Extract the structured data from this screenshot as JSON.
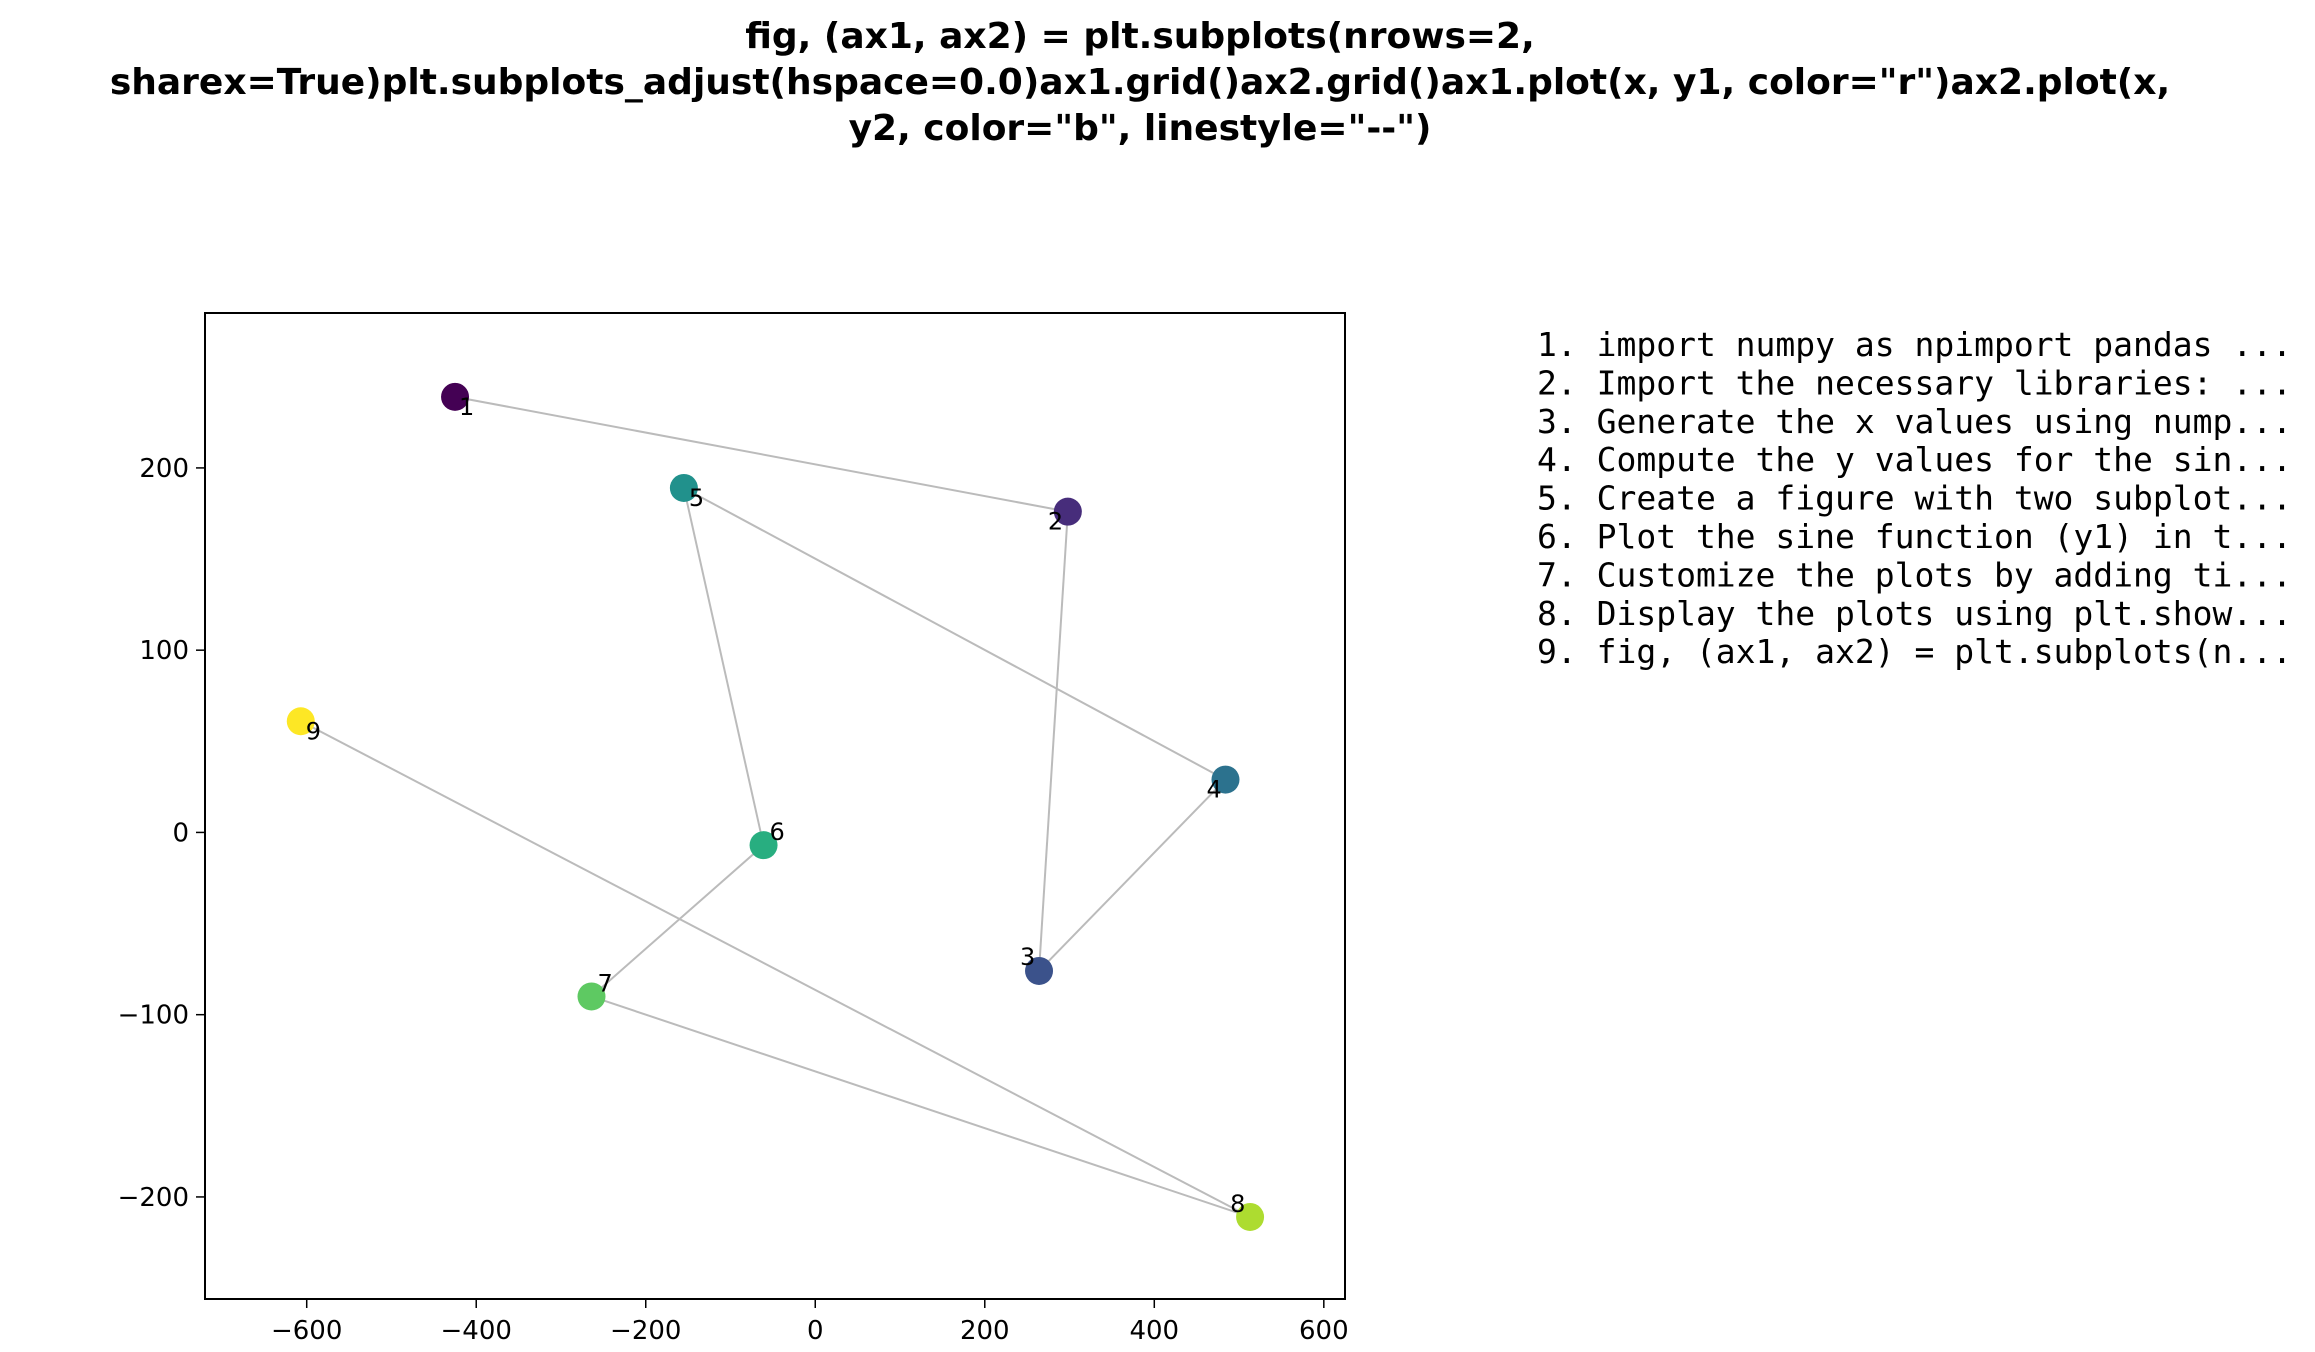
{
  "title": {
    "lines": [
      "fig, (ax1, ax2) = plt.subplots(nrows=2,",
      "sharex=True)plt.subplots_adjust(hspace=0.0)ax1.grid()ax2.grid()ax1.plot(x, y1, color=\"r\")ax2.plot(x,",
      "y2, color=\"b\", linestyle=\"--\")"
    ]
  },
  "chart_data": {
    "type": "scatter",
    "connected": true,
    "line_color": "#bbbbbb",
    "colormap": "viridis",
    "xlim": [
      -720,
      625
    ],
    "ylim": [
      -256,
      285
    ],
    "xticks": [
      -600,
      -400,
      -200,
      0,
      200,
      400,
      600
    ],
    "xtick_labels": [
      "−600",
      "−400",
      "−200",
      "0",
      "200",
      "400",
      "600"
    ],
    "yticks": [
      -200,
      -100,
      0,
      100,
      200
    ],
    "ytick_labels": [
      "−200",
      "−100",
      "0",
      "100",
      "200"
    ],
    "grid": false,
    "points": [
      {
        "label": "1",
        "x": -425,
        "y": 239,
        "color": "#440154"
      },
      {
        "label": "2",
        "x": 298,
        "y": 176,
        "color": "#472d7b"
      },
      {
        "label": "3",
        "x": 264,
        "y": -76,
        "color": "#3b528b"
      },
      {
        "label": "4",
        "x": 484,
        "y": 29,
        "color": "#2c728e"
      },
      {
        "label": "5",
        "x": -155,
        "y": 189,
        "color": "#21918c"
      },
      {
        "label": "6",
        "x": -61,
        "y": -7,
        "color": "#28ae80"
      },
      {
        "label": "7",
        "x": -264,
        "y": -90,
        "color": "#5ec962"
      },
      {
        "label": "8",
        "x": 513,
        "y": -211,
        "color": "#addc30"
      },
      {
        "label": "9",
        "x": -607,
        "y": 61,
        "color": "#fde725"
      }
    ]
  },
  "legend": {
    "items": [
      "1. import numpy as npimport pandas ...",
      "2. Import the necessary libraries: ...",
      "3. Generate the x values using nump...",
      "4. Compute the y values for the sin...",
      "5. Create a figure with two subplot...",
      "6. Plot the sine function (y1) in t...",
      "7. Customize the plots by adding ti...",
      "8. Display the plots using plt.show...",
      "9. fig, (ax1, ax2) = plt.subplots(n..."
    ]
  }
}
